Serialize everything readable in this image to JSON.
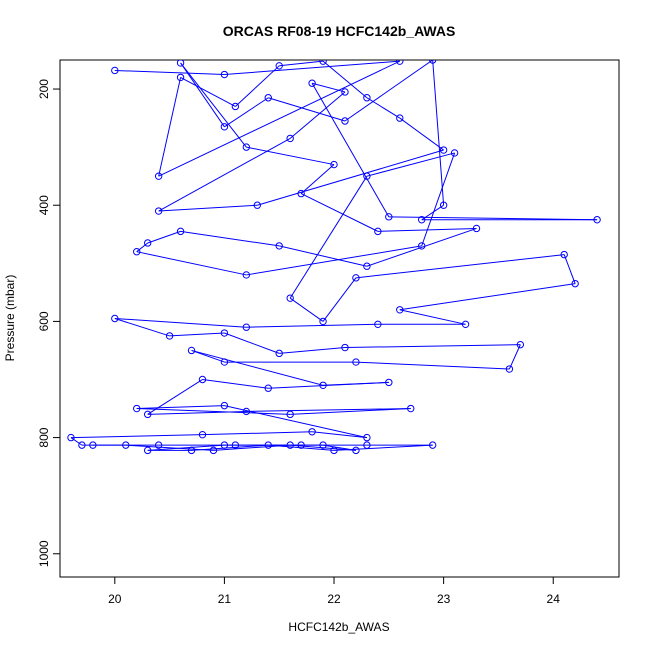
{
  "chart_data": {
    "type": "scatter",
    "title": "ORCAS RF08-19 HCFC142b_AWAS",
    "xlabel": "HCFC142b_AWAS",
    "ylabel": "Pressure (mbar)",
    "xlim": [
      19.5,
      24.6
    ],
    "ylim": [
      1040,
      150
    ],
    "y_reversed": true,
    "x_ticks": [
      20,
      21,
      22,
      23,
      24
    ],
    "y_ticks": [
      200,
      400,
      600,
      800,
      1000
    ],
    "grid": false,
    "legend": "none",
    "point_style": "open-circle",
    "connected": true,
    "color": "#0000ff",
    "series": [
      {
        "values": [
          [
            20.0,
            168
          ],
          [
            21.0,
            175
          ],
          [
            22.6,
            152
          ],
          [
            20.4,
            350
          ],
          [
            20.6,
            180
          ],
          [
            21.1,
            230
          ],
          [
            21.5,
            160
          ],
          [
            21.9,
            152
          ],
          [
            22.3,
            215
          ],
          [
            22.6,
            250
          ],
          [
            23.0,
            305
          ],
          [
            21.3,
            400
          ],
          [
            20.4,
            410
          ],
          [
            21.6,
            285
          ],
          [
            22.1,
            205
          ],
          [
            21.8,
            190
          ],
          [
            22.5,
            420
          ],
          [
            24.4,
            425
          ],
          [
            22.8,
            425
          ],
          [
            23.0,
            400
          ],
          [
            22.9,
            150
          ],
          [
            22.1,
            255
          ],
          [
            21.4,
            215
          ],
          [
            21.0,
            265
          ],
          [
            20.6,
            155
          ],
          [
            21.2,
            300
          ],
          [
            22.0,
            330
          ],
          [
            21.7,
            380
          ],
          [
            22.4,
            445
          ],
          [
            23.3,
            440
          ],
          [
            22.3,
            505
          ],
          [
            21.5,
            470
          ],
          [
            20.6,
            445
          ],
          [
            20.3,
            465
          ],
          [
            20.2,
            480
          ],
          [
            21.2,
            520
          ],
          [
            22.8,
            470
          ],
          [
            23.1,
            310
          ],
          [
            22.3,
            350
          ],
          [
            21.6,
            560
          ],
          [
            21.9,
            600
          ],
          [
            22.2,
            525
          ],
          [
            24.1,
            485
          ],
          [
            24.2,
            535
          ],
          [
            22.6,
            580
          ],
          [
            23.2,
            605
          ],
          [
            22.4,
            605
          ],
          [
            21.2,
            610
          ],
          [
            20.0,
            595
          ],
          [
            20.5,
            625
          ],
          [
            21.0,
            620
          ],
          [
            21.5,
            655
          ],
          [
            22.1,
            645
          ],
          [
            23.7,
            640
          ],
          [
            23.6,
            682
          ],
          [
            22.2,
            670
          ],
          [
            21.0,
            670
          ],
          [
            20.7,
            650
          ],
          [
            21.9,
            710
          ],
          [
            22.5,
            705
          ],
          [
            21.4,
            715
          ],
          [
            20.8,
            700
          ],
          [
            20.3,
            760
          ],
          [
            21.2,
            755
          ],
          [
            22.7,
            750
          ],
          [
            21.6,
            760
          ],
          [
            20.2,
            750
          ],
          [
            21.0,
            745
          ],
          [
            22.3,
            800
          ],
          [
            21.8,
            790
          ],
          [
            20.8,
            795
          ],
          [
            19.6,
            800
          ],
          [
            19.7,
            813
          ],
          [
            20.4,
            813
          ],
          [
            21.1,
            813
          ],
          [
            21.7,
            813
          ],
          [
            22.3,
            813
          ],
          [
            22.9,
            813
          ],
          [
            22.0,
            822
          ],
          [
            21.4,
            813
          ],
          [
            20.7,
            822
          ],
          [
            20.3,
            822
          ],
          [
            21.0,
            813
          ],
          [
            21.9,
            813
          ],
          [
            22.2,
            822
          ],
          [
            21.6,
            813
          ],
          [
            20.9,
            822
          ],
          [
            20.1,
            813
          ],
          [
            19.8,
            813
          ]
        ]
      }
    ]
  }
}
